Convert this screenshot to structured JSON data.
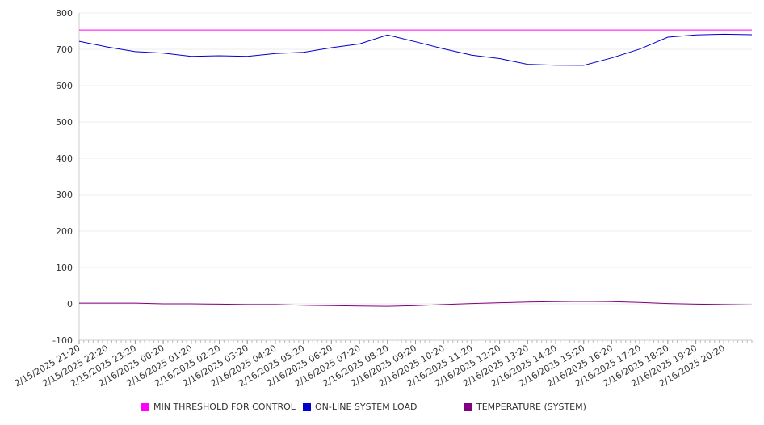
{
  "chart_data": {
    "type": "line",
    "title": "",
    "xlabel": "",
    "ylabel": "",
    "ylim": [
      -100,
      800
    ],
    "yticks": [
      800,
      700,
      600,
      500,
      400,
      300,
      200,
      100,
      0,
      -100
    ],
    "x_tick_labels": [
      "2/15/2025 21:20",
      "2/15/2025 22:20",
      "2/15/2025 23:20",
      "2/16/2025 00:20",
      "2/16/2025 01:20",
      "2/16/2025 02:20",
      "2/16/2025 03:20",
      "2/16/2025 04:20",
      "2/16/2025 05:20",
      "2/16/2025 06:20",
      "2/16/2025 07:20",
      "2/16/2025 08:20",
      "2/16/2025 09:20",
      "2/16/2025 10:20",
      "2/16/2025 11:20",
      "2/16/2025 12:20",
      "2/16/2025 13:20",
      "2/16/2025 14:20",
      "2/16/2025 15:20",
      "2/16/2025 16:20",
      "2/16/2025 17:20",
      "2/16/2025 18:20",
      "2/16/2025 19:20",
      "2/16/2025 20:20"
    ],
    "grid": true,
    "legend_position": "bottom",
    "series": [
      {
        "name": "MIN THRESHOLD FOR CONTROL",
        "color": "#ff00ff",
        "values": [
          753,
          753,
          753,
          753,
          753,
          753,
          753,
          753,
          753,
          753,
          753,
          753,
          753,
          753,
          753,
          753,
          753,
          753,
          753,
          753,
          753,
          753,
          753,
          753,
          753
        ]
      },
      {
        "name": "ON-LINE SYSTEM LOAD",
        "color": "#0000cc",
        "values": [
          722,
          705,
          695,
          688,
          682,
          681,
          682,
          687,
          693,
          703,
          716,
          738,
          722,
          700,
          685,
          673,
          660,
          655,
          657,
          675,
          702,
          732,
          741,
          740,
          740
        ]
      },
      {
        "name": "TEMPERATURE (SYSTEM)",
        "color": "#800080",
        "values": [
          2,
          2,
          2,
          0,
          0,
          -1,
          -2,
          -2,
          -4,
          -5,
          -6,
          -7,
          -5,
          -2,
          1,
          3,
          5,
          6,
          7,
          6,
          4,
          1,
          -1,
          -2,
          -3
        ]
      }
    ]
  }
}
